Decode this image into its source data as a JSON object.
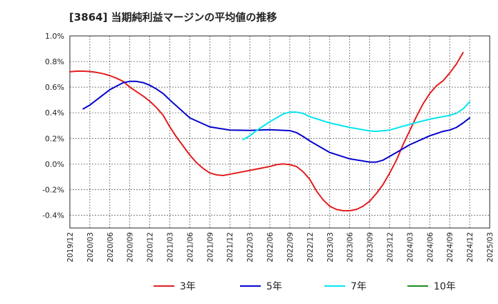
{
  "chart_data": {
    "type": "line",
    "title": "[3864]  当期純利益マージンの平均値の推移",
    "xlabel": "",
    "ylabel": "",
    "x_ticks": [
      "2019/12",
      "2020/03",
      "2020/06",
      "2020/09",
      "2020/12",
      "2021/03",
      "2021/06",
      "2021/09",
      "2021/12",
      "2022/03",
      "2022/06",
      "2022/09",
      "2022/12",
      "2023/03",
      "2023/06",
      "2023/09",
      "2023/12",
      "2024/03",
      "2024/06",
      "2024/09",
      "2024/12",
      "2025/03"
    ],
    "y_ticks": [
      "1.0%",
      "0.8%",
      "0.6%",
      "0.4%",
      "0.2%",
      "0.0%",
      "-0.2%",
      "-0.4%"
    ],
    "ylim": [
      -0.5,
      1.0
    ],
    "grid": true,
    "legend_position": "bottom",
    "series": [
      {
        "name": "3年",
        "color": "#e31a1c",
        "points": [
          [
            "2019/12",
            0.72
          ],
          [
            "2020/01",
            0.725
          ],
          [
            "2020/02",
            0.725
          ],
          [
            "2020/03",
            0.722
          ],
          [
            "2020/04",
            0.715
          ],
          [
            "2020/05",
            0.705
          ],
          [
            "2020/06",
            0.69
          ],
          [
            "2020/07",
            0.67
          ],
          [
            "2020/08",
            0.645
          ],
          [
            "2020/09",
            0.6
          ],
          [
            "2020/10",
            0.565
          ],
          [
            "2020/11",
            0.53
          ],
          [
            "2020/12",
            0.49
          ],
          [
            "2021/01",
            0.44
          ],
          [
            "2021/02",
            0.38
          ],
          [
            "2021/03",
            0.29
          ],
          [
            "2021/04",
            0.21
          ],
          [
            "2021/05",
            0.14
          ],
          [
            "2021/06",
            0.07
          ],
          [
            "2021/07",
            0.01
          ],
          [
            "2021/08",
            -0.035
          ],
          [
            "2021/09",
            -0.07
          ],
          [
            "2021/10",
            -0.085
          ],
          [
            "2021/11",
            -0.09
          ],
          [
            "2021/12",
            -0.08
          ],
          [
            "2022/03",
            -0.05
          ],
          [
            "2022/06",
            -0.02
          ],
          [
            "2022/07",
            -0.005
          ],
          [
            "2022/08",
            0.0
          ],
          [
            "2022/09",
            -0.005
          ],
          [
            "2022/10",
            -0.02
          ],
          [
            "2022/11",
            -0.06
          ],
          [
            "2022/12",
            -0.12
          ],
          [
            "2023/01",
            -0.21
          ],
          [
            "2023/02",
            -0.28
          ],
          [
            "2023/03",
            -0.33
          ],
          [
            "2023/04",
            -0.355
          ],
          [
            "2023/05",
            -0.365
          ],
          [
            "2023/06",
            -0.365
          ],
          [
            "2023/07",
            -0.355
          ],
          [
            "2023/08",
            -0.33
          ],
          [
            "2023/09",
            -0.29
          ],
          [
            "2023/10",
            -0.23
          ],
          [
            "2023/11",
            -0.16
          ],
          [
            "2023/12",
            -0.07
          ],
          [
            "2024/01",
            0.03
          ],
          [
            "2024/02",
            0.15
          ],
          [
            "2024/03",
            0.26
          ],
          [
            "2024/04",
            0.37
          ],
          [
            "2024/05",
            0.47
          ],
          [
            "2024/06",
            0.55
          ],
          [
            "2024/07",
            0.61
          ],
          [
            "2024/08",
            0.65
          ],
          [
            "2024/09",
            0.71
          ],
          [
            "2024/10",
            0.78
          ],
          [
            "2024/11",
            0.87
          ]
        ]
      },
      {
        "name": "5年",
        "color": "#0000cc",
        "points": [
          [
            "2020/02",
            0.43
          ],
          [
            "2020/03",
            0.46
          ],
          [
            "2020/06",
            0.58
          ],
          [
            "2020/08",
            0.635
          ],
          [
            "2020/09",
            0.645
          ],
          [
            "2020/10",
            0.645
          ],
          [
            "2020/11",
            0.635
          ],
          [
            "2020/12",
            0.615
          ],
          [
            "2021/01",
            0.585
          ],
          [
            "2021/02",
            0.55
          ],
          [
            "2021/03",
            0.5
          ],
          [
            "2021/06",
            0.36
          ],
          [
            "2021/09",
            0.29
          ],
          [
            "2021/12",
            0.265
          ],
          [
            "2022/03",
            0.262
          ],
          [
            "2022/06",
            0.268
          ],
          [
            "2022/09",
            0.26
          ],
          [
            "2022/10",
            0.245
          ],
          [
            "2022/11",
            0.215
          ],
          [
            "2022/12",
            0.18
          ],
          [
            "2023/03",
            0.09
          ],
          [
            "2023/06",
            0.04
          ],
          [
            "2023/09",
            0.015
          ],
          [
            "2023/10",
            0.015
          ],
          [
            "2023/11",
            0.03
          ],
          [
            "2023/12",
            0.06
          ],
          [
            "2024/01",
            0.09
          ],
          [
            "2024/03",
            0.15
          ],
          [
            "2024/06",
            0.22
          ],
          [
            "2024/08",
            0.255
          ],
          [
            "2024/09",
            0.265
          ],
          [
            "2024/10",
            0.285
          ],
          [
            "2024/11",
            0.32
          ],
          [
            "2024/12",
            0.36
          ]
        ]
      },
      {
        "name": "7年",
        "color": "#00e5ee",
        "points": [
          [
            "2022/02",
            0.19
          ],
          [
            "2022/03",
            0.22
          ],
          [
            "2022/04",
            0.26
          ],
          [
            "2022/06",
            0.33
          ],
          [
            "2022/08",
            0.39
          ],
          [
            "2022/09",
            0.405
          ],
          [
            "2022/10",
            0.405
          ],
          [
            "2022/11",
            0.395
          ],
          [
            "2022/12",
            0.37
          ],
          [
            "2023/03",
            0.32
          ],
          [
            "2023/06",
            0.285
          ],
          [
            "2023/09",
            0.258
          ],
          [
            "2023/10",
            0.255
          ],
          [
            "2023/12",
            0.265
          ],
          [
            "2024/03",
            0.31
          ],
          [
            "2024/06",
            0.35
          ],
          [
            "2024/09",
            0.38
          ],
          [
            "2024/10",
            0.395
          ],
          [
            "2024/11",
            0.43
          ],
          [
            "2024/12",
            0.485
          ]
        ]
      },
      {
        "name": "10年",
        "color": "#1a8a1a",
        "points": []
      }
    ]
  }
}
